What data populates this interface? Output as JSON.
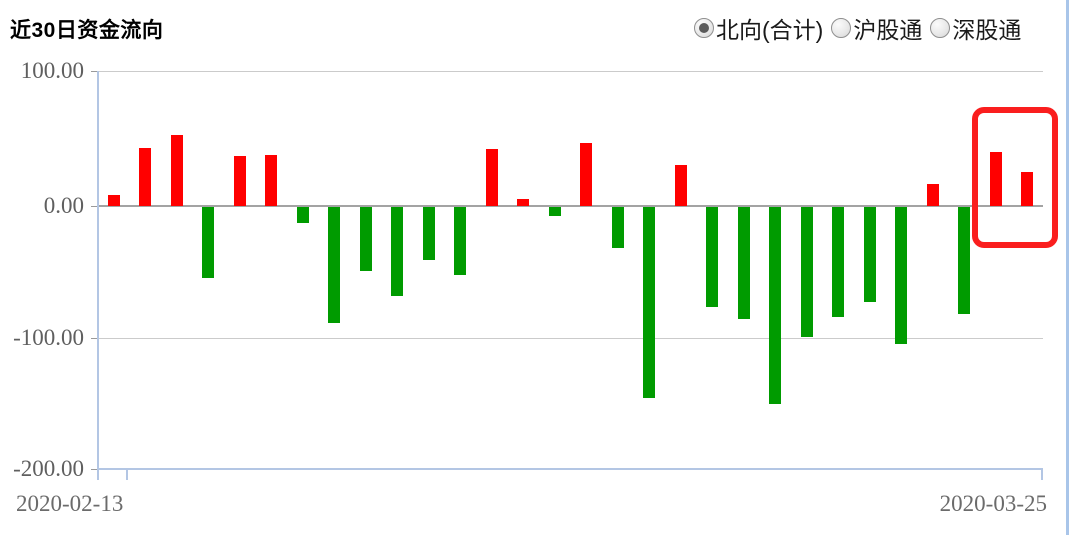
{
  "header": {
    "title": "近30日资金流向",
    "radio_options": [
      {
        "label": "北向(合计)",
        "selected": true
      },
      {
        "label": "沪股通",
        "selected": false
      },
      {
        "label": "深股通",
        "selected": false
      }
    ]
  },
  "chart_data": {
    "type": "bar",
    "title": "近30日资金流向",
    "series_name": "北向(合计)",
    "values": [
      8,
      44,
      54,
      -54,
      38,
      39,
      -12,
      -88,
      -49,
      -68,
      -40,
      -52,
      43,
      5,
      -7,
      48,
      -31,
      -145,
      31,
      -76,
      -85,
      -150,
      -99,
      -84,
      -72,
      -104,
      17,
      -81,
      41,
      26
    ],
    "x_first_label": "2020-02-13",
    "x_last_label": "2020-03-25",
    "y_tick_labels": [
      "100.00",
      "0.00",
      "-100.00",
      "-200.00"
    ],
    "y_tick_values": [
      100,
      0,
      -100,
      -200
    ],
    "ylim": [
      -200,
      100
    ],
    "grid": true,
    "legend_position": "none",
    "positive_color": "#ff0000",
    "negative_color": "#009b00",
    "annotation": {
      "type": "highlight-box",
      "covers_last_n_bars": 2,
      "color": "#fa1e1e"
    }
  },
  "colors": {
    "axis_blue": "#b3c6e4",
    "gridline_gray": "#cbcbcb",
    "zero_line_gray": "#a3a3a3",
    "label_gray": "#5f5f5f",
    "divider_blue": "#a9c5e9"
  }
}
